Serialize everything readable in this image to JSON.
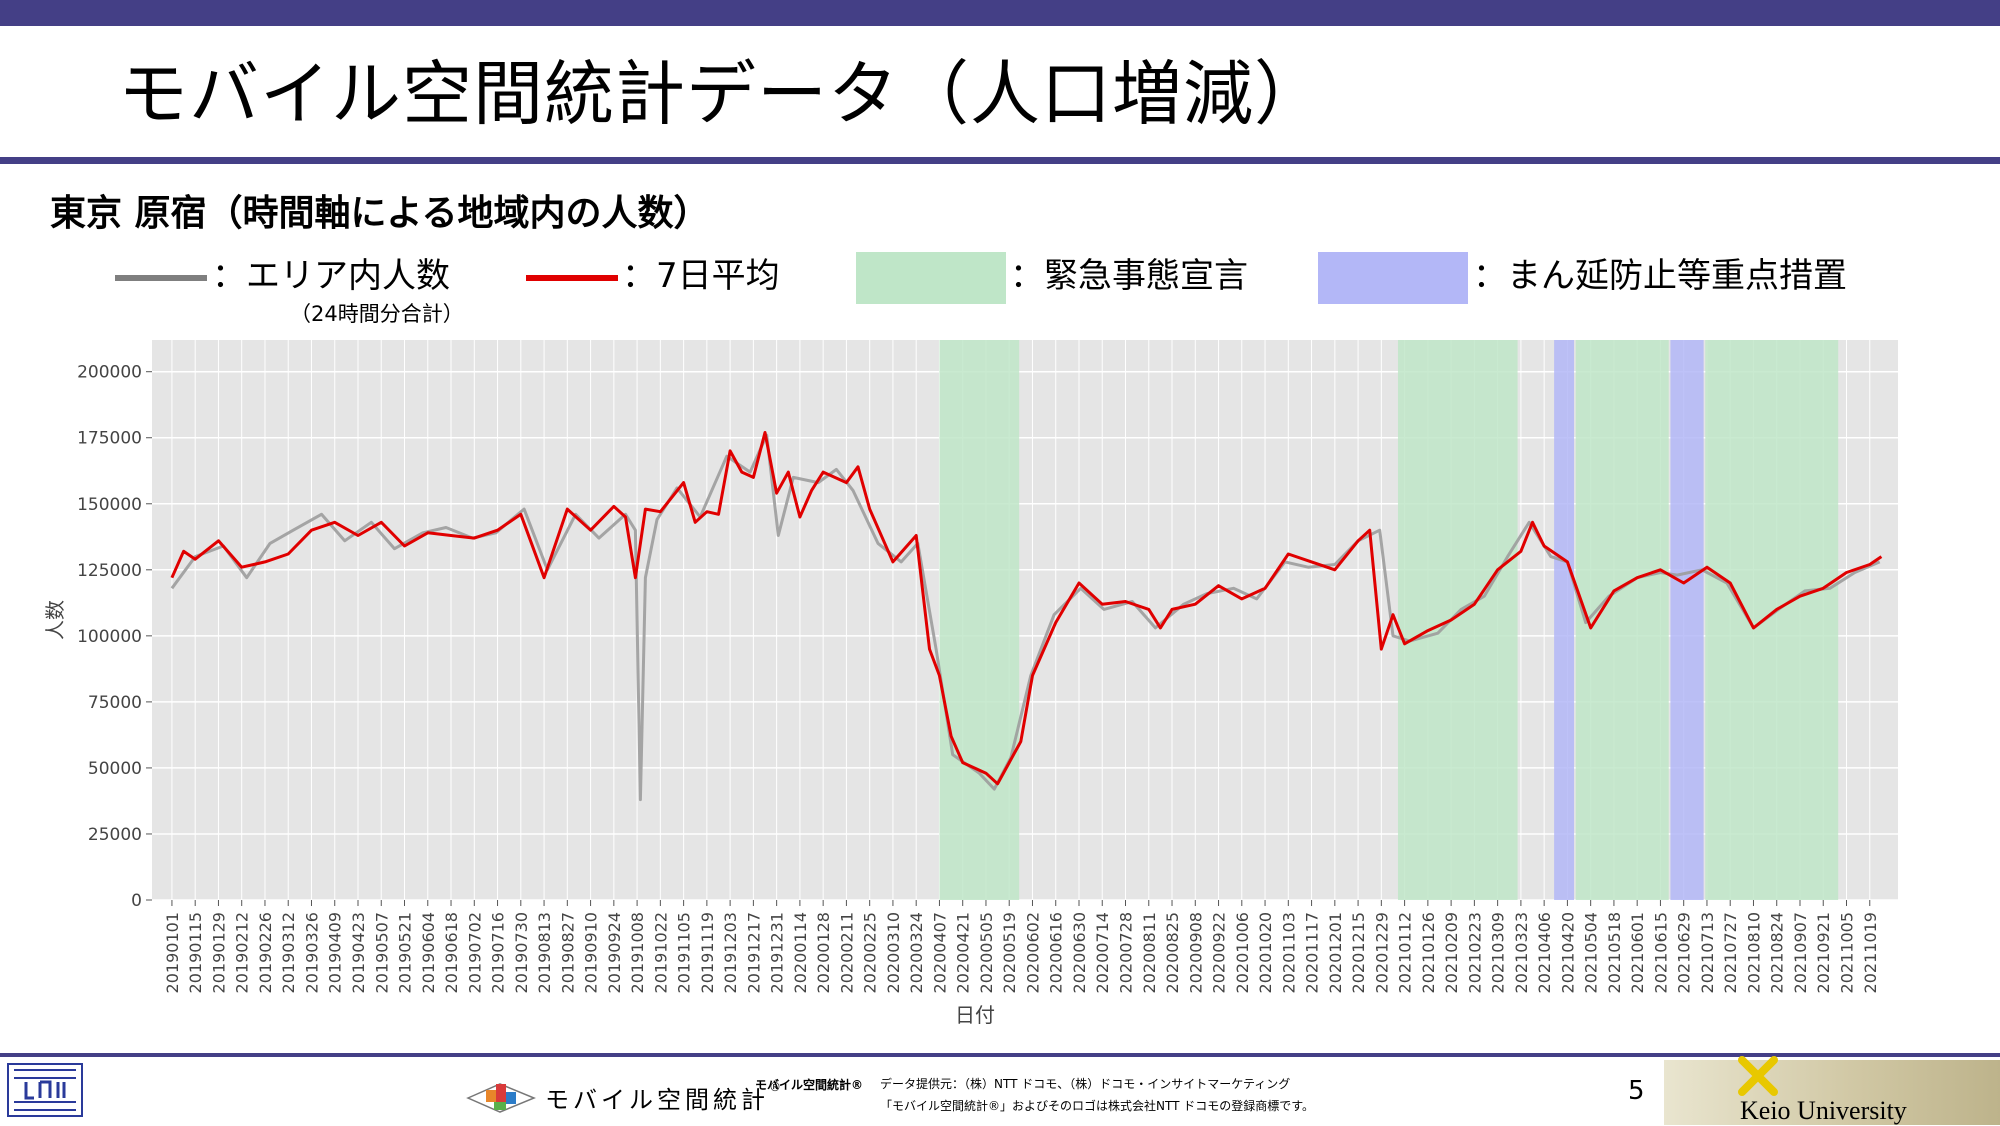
{
  "colors": {
    "bar": "#443f86",
    "area": "#7f7f7f",
    "avg": "#e00000",
    "emergency": "#bfe6c8",
    "priority": "#b3b7f7",
    "panel": "#e5e5e5"
  },
  "header": {
    "title": "モバイル空間統計データ（人口増減）"
  },
  "subtitle": "東京 原宿（時間軸による地域内の人数）",
  "legend": {
    "area_label": "：エリア内人数",
    "area_note": "（24時間分合計）",
    "avg_label": "：7日平均",
    "emergency_label": "：緊急事態宣言",
    "priority_label": "：まん延防止等重点措置"
  },
  "footer": {
    "brand_text": "モバイル空間統計",
    "brand_mark": "®",
    "brand_small": "モバイル空間統計®",
    "provider": "データ提供元：（株）NTT ドコモ、（株）ドコモ・インサイトマーケティング",
    "trademark": "「モバイル空間統計®」およびそのロゴは株式会社NTT ドコモの登録商標です。",
    "page": "5",
    "university": "Keio University"
  },
  "chart_data": {
    "type": "line",
    "xlabel": "日付",
    "ylabel": "人数",
    "ylim": [
      0,
      212000
    ],
    "xlim": [
      "2018-12-20",
      "2021-11-05"
    ],
    "yticks": [
      0,
      25000,
      50000,
      75000,
      100000,
      125000,
      150000,
      175000,
      200000
    ],
    "xticks": [
      "20190101",
      "20190115",
      "20190129",
      "20190212",
      "20190226",
      "20190312",
      "20190326",
      "20190409",
      "20190423",
      "20190507",
      "20190521",
      "20190604",
      "20190618",
      "20190702",
      "20190716",
      "20190730",
      "20190813",
      "20190827",
      "20190910",
      "20190924",
      "20191008",
      "20191022",
      "20191105",
      "20191119",
      "20191203",
      "20191217",
      "20191231",
      "20200114",
      "20200128",
      "20200211",
      "20200225",
      "20200310",
      "20200324",
      "20200407",
      "20200421",
      "20200505",
      "20200519",
      "20200602",
      "20200616",
      "20200630",
      "20200714",
      "20200728",
      "20200811",
      "20200825",
      "20200908",
      "20200922",
      "20201006",
      "20201020",
      "20201103",
      "20201117",
      "20201201",
      "20201215",
      "20201229",
      "20210112",
      "20210126",
      "20210209",
      "20210223",
      "20210309",
      "20210323",
      "20210406",
      "20210420",
      "20210504",
      "20210518",
      "20210601",
      "20210615",
      "20210629",
      "20210713",
      "20210727",
      "20210810",
      "20210824",
      "20210907",
      "20210921",
      "20211005",
      "20211019"
    ],
    "grid": true,
    "shaded_periods": [
      {
        "type": "emergency",
        "start": "2020-04-07",
        "end": "2020-05-25"
      },
      {
        "type": "emergency",
        "start": "2021-01-08",
        "end": "2021-03-21"
      },
      {
        "type": "priority",
        "start": "2021-04-12",
        "end": "2021-04-24"
      },
      {
        "type": "emergency",
        "start": "2021-04-25",
        "end": "2021-06-20"
      },
      {
        "type": "priority",
        "start": "2021-06-21",
        "end": "2021-07-11"
      },
      {
        "type": "emergency",
        "start": "2021-07-12",
        "end": "2021-09-30"
      }
    ],
    "series": [
      {
        "style": "area",
        "points": [
          [
            "2019-01-01",
            118000
          ],
          [
            "2019-01-15",
            130000
          ],
          [
            "2019-02-01",
            134000
          ],
          [
            "2019-02-15",
            122000
          ],
          [
            "2019-03-01",
            135000
          ],
          [
            "2019-03-15",
            140000
          ],
          [
            "2019-04-01",
            146000
          ],
          [
            "2019-04-15",
            136000
          ],
          [
            "2019-05-01",
            143000
          ],
          [
            "2019-05-15",
            133000
          ],
          [
            "2019-06-01",
            139000
          ],
          [
            "2019-06-15",
            141000
          ],
          [
            "2019-07-01",
            137000
          ],
          [
            "2019-07-15",
            139000
          ],
          [
            "2019-08-01",
            148000
          ],
          [
            "2019-08-15",
            125000
          ],
          [
            "2019-09-01",
            146000
          ],
          [
            "2019-09-15",
            137000
          ],
          [
            "2019-10-01",
            146000
          ],
          [
            "2019-10-07",
            140000
          ],
          [
            "2019-10-10",
            38000
          ],
          [
            "2019-10-13",
            122000
          ],
          [
            "2019-10-20",
            144000
          ],
          [
            "2019-11-01",
            156000
          ],
          [
            "2019-11-15",
            145000
          ],
          [
            "2019-12-01",
            168000
          ],
          [
            "2019-12-15",
            162000
          ],
          [
            "2019-12-25",
            176000
          ],
          [
            "2020-01-01",
            138000
          ],
          [
            "2020-01-10",
            160000
          ],
          [
            "2020-01-25",
            158000
          ],
          [
            "2020-02-05",
            163000
          ],
          [
            "2020-02-15",
            155000
          ],
          [
            "2020-03-01",
            135000
          ],
          [
            "2020-03-15",
            128000
          ],
          [
            "2020-03-25",
            135000
          ],
          [
            "2020-04-05",
            95000
          ],
          [
            "2020-04-15",
            55000
          ],
          [
            "2020-05-01",
            48000
          ],
          [
            "2020-05-10",
            42000
          ],
          [
            "2020-05-20",
            54000
          ],
          [
            "2020-06-01",
            85000
          ],
          [
            "2020-06-15",
            108000
          ],
          [
            "2020-07-01",
            118000
          ],
          [
            "2020-07-15",
            110000
          ],
          [
            "2020-08-01",
            113000
          ],
          [
            "2020-08-15",
            103000
          ],
          [
            "2020-09-01",
            112000
          ],
          [
            "2020-09-15",
            116000
          ],
          [
            "2020-10-01",
            118000
          ],
          [
            "2020-10-15",
            114000
          ],
          [
            "2020-11-01",
            128000
          ],
          [
            "2020-11-15",
            126000
          ],
          [
            "2020-12-01",
            127000
          ],
          [
            "2020-12-15",
            136000
          ],
          [
            "2020-12-28",
            140000
          ],
          [
            "2021-01-05",
            100000
          ],
          [
            "2021-01-15",
            98000
          ],
          [
            "2021-02-01",
            101000
          ],
          [
            "2021-02-15",
            110000
          ],
          [
            "2021-03-01",
            115000
          ],
          [
            "2021-03-15",
            130000
          ],
          [
            "2021-03-28",
            143000
          ],
          [
            "2021-04-10",
            130000
          ],
          [
            "2021-04-20",
            128000
          ],
          [
            "2021-05-01",
            105000
          ],
          [
            "2021-05-15",
            115000
          ],
          [
            "2021-06-01",
            122000
          ],
          [
            "2021-06-15",
            124000
          ],
          [
            "2021-06-25",
            123000
          ],
          [
            "2021-07-10",
            125000
          ],
          [
            "2021-07-25",
            120000
          ],
          [
            "2021-08-10",
            103000
          ],
          [
            "2021-08-25",
            110000
          ],
          [
            "2021-09-10",
            117000
          ],
          [
            "2021-09-25",
            118000
          ],
          [
            "2021-10-10",
            124000
          ],
          [
            "2021-10-25",
            128000
          ]
        ]
      },
      {
        "style": "line",
        "points": [
          [
            "2019-01-01",
            122000
          ],
          [
            "2019-01-08",
            132000
          ],
          [
            "2019-01-15",
            129000
          ],
          [
            "2019-01-29",
            136000
          ],
          [
            "2019-02-12",
            126000
          ],
          [
            "2019-02-26",
            128000
          ],
          [
            "2019-03-12",
            131000
          ],
          [
            "2019-03-26",
            140000
          ],
          [
            "2019-04-09",
            143000
          ],
          [
            "2019-04-23",
            138000
          ],
          [
            "2019-05-07",
            143000
          ],
          [
            "2019-05-21",
            134000
          ],
          [
            "2019-06-04",
            139000
          ],
          [
            "2019-06-18",
            138000
          ],
          [
            "2019-07-02",
            137000
          ],
          [
            "2019-07-16",
            140000
          ],
          [
            "2019-07-30",
            146000
          ],
          [
            "2019-08-13",
            122000
          ],
          [
            "2019-08-27",
            148000
          ],
          [
            "2019-09-10",
            140000
          ],
          [
            "2019-09-24",
            149000
          ],
          [
            "2019-10-01",
            145000
          ],
          [
            "2019-10-07",
            122000
          ],
          [
            "2019-10-13",
            148000
          ],
          [
            "2019-10-22",
            147000
          ],
          [
            "2019-11-05",
            158000
          ],
          [
            "2019-11-12",
            143000
          ],
          [
            "2019-11-19",
            147000
          ],
          [
            "2019-11-26",
            146000
          ],
          [
            "2019-12-03",
            170000
          ],
          [
            "2019-12-10",
            162000
          ],
          [
            "2019-12-17",
            160000
          ],
          [
            "2019-12-24",
            177000
          ],
          [
            "2019-12-31",
            154000
          ],
          [
            "2020-01-07",
            162000
          ],
          [
            "2020-01-14",
            145000
          ],
          [
            "2020-01-21",
            155000
          ],
          [
            "2020-01-28",
            162000
          ],
          [
            "2020-02-11",
            158000
          ],
          [
            "2020-02-18",
            164000
          ],
          [
            "2020-02-25",
            148000
          ],
          [
            "2020-03-10",
            128000
          ],
          [
            "2020-03-24",
            138000
          ],
          [
            "2020-04-01",
            95000
          ],
          [
            "2020-04-07",
            85000
          ],
          [
            "2020-04-14",
            62000
          ],
          [
            "2020-04-21",
            52000
          ],
          [
            "2020-05-05",
            48000
          ],
          [
            "2020-05-12",
            44000
          ],
          [
            "2020-05-19",
            52000
          ],
          [
            "2020-05-26",
            60000
          ],
          [
            "2020-06-02",
            85000
          ],
          [
            "2020-06-16",
            105000
          ],
          [
            "2020-06-30",
            120000
          ],
          [
            "2020-07-14",
            112000
          ],
          [
            "2020-07-28",
            113000
          ],
          [
            "2020-08-11",
            110000
          ],
          [
            "2020-08-18",
            103000
          ],
          [
            "2020-08-25",
            110000
          ],
          [
            "2020-09-08",
            112000
          ],
          [
            "2020-09-22",
            119000
          ],
          [
            "2020-10-06",
            114000
          ],
          [
            "2020-10-20",
            118000
          ],
          [
            "2020-11-03",
            131000
          ],
          [
            "2020-11-17",
            128000
          ],
          [
            "2020-12-01",
            125000
          ],
          [
            "2020-12-15",
            136000
          ],
          [
            "2020-12-22",
            140000
          ],
          [
            "2020-12-29",
            95000
          ],
          [
            "2021-01-05",
            108000
          ],
          [
            "2021-01-12",
            97000
          ],
          [
            "2021-01-26",
            102000
          ],
          [
            "2021-02-09",
            106000
          ],
          [
            "2021-02-23",
            112000
          ],
          [
            "2021-03-09",
            125000
          ],
          [
            "2021-03-23",
            132000
          ],
          [
            "2021-03-30",
            143000
          ],
          [
            "2021-04-06",
            134000
          ],
          [
            "2021-04-20",
            128000
          ],
          [
            "2021-05-04",
            103000
          ],
          [
            "2021-05-11",
            110000
          ],
          [
            "2021-05-18",
            117000
          ],
          [
            "2021-06-01",
            122000
          ],
          [
            "2021-06-15",
            125000
          ],
          [
            "2021-06-29",
            120000
          ],
          [
            "2021-07-13",
            126000
          ],
          [
            "2021-07-27",
            120000
          ],
          [
            "2021-08-10",
            103000
          ],
          [
            "2021-08-24",
            110000
          ],
          [
            "2021-09-07",
            115000
          ],
          [
            "2021-09-21",
            118000
          ],
          [
            "2021-10-05",
            124000
          ],
          [
            "2021-10-19",
            127000
          ],
          [
            "2021-10-26",
            130000
          ]
        ]
      }
    ]
  }
}
